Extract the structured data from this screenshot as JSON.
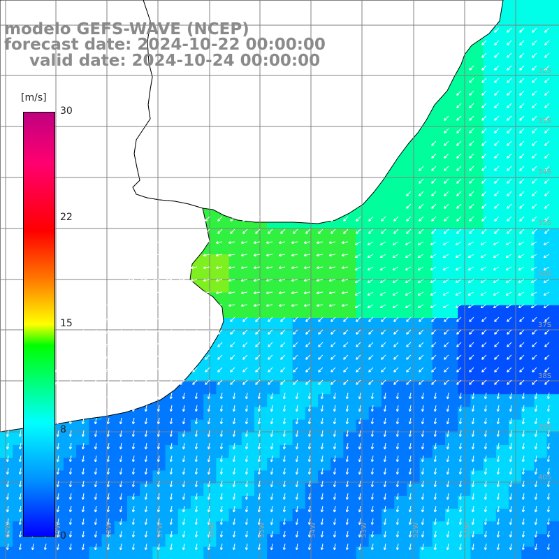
{
  "title": {
    "model": "modelo GEFS-WAVE (NCEP)",
    "forecast": "forecast date: 2024-10-22 00:00:00",
    "valid": "valid date: 2024-10-24 00:00:00"
  },
  "colorbar": {
    "unit": "[m/s]",
    "min": 0,
    "max": 30,
    "ticks": [
      "30",
      "22",
      "15",
      "8",
      "0"
    ],
    "colors": [
      "#0000ff",
      "#0090ff",
      "#00ffff",
      "#00ff00",
      "#ffff00",
      "#ff8000",
      "#ff0000",
      "#ff0070",
      "#c00080"
    ]
  },
  "map": {
    "variable": "wind speed and direction",
    "lon_labels": [
      "60W",
      "59W",
      "58W",
      "57W",
      "56W",
      "55W",
      "54W",
      "53W",
      "52W",
      "51W"
    ],
    "lat_labels": [
      "32S",
      "33S",
      "34S",
      "35S",
      "36S",
      "37S",
      "38S",
      "39S",
      "40S"
    ],
    "grid": true,
    "colors": {
      "land": "#ffffff",
      "coast": "#000000",
      "grid": "#808080",
      "arrow": "#ffffff"
    }
  }
}
